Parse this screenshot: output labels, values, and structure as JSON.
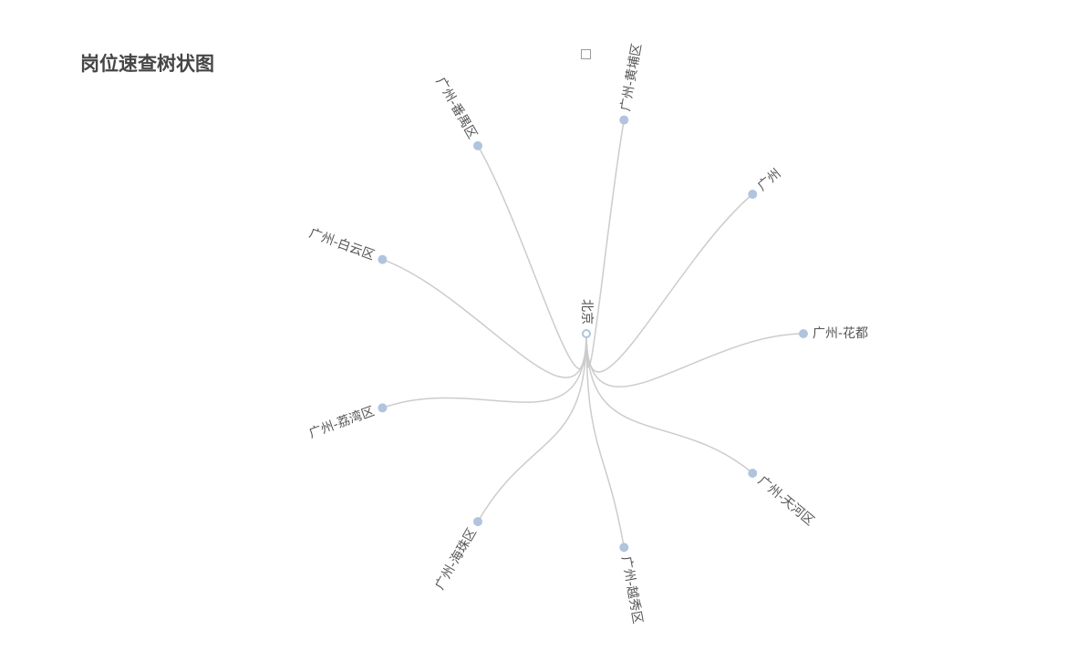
{
  "title": "岗位速查树状图",
  "legend": {
    "label": ""
  },
  "colors": {
    "edge": "#cccccc",
    "node": "#b0c4de",
    "text": "#555555",
    "title": "#464646"
  },
  "tree": {
    "layout": "radial",
    "root": {
      "name": "北京"
    },
    "children": [
      {
        "name": "广州-白云区"
      },
      {
        "name": "广州-番禺区"
      },
      {
        "name": "广州-黄埔区"
      },
      {
        "name": "广州"
      },
      {
        "name": "广州-花都"
      },
      {
        "name": "广州-天河区"
      },
      {
        "name": "广州-越秀区"
      },
      {
        "name": "广州-海珠区"
      },
      {
        "name": "广州-荔湾区"
      }
    ]
  }
}
